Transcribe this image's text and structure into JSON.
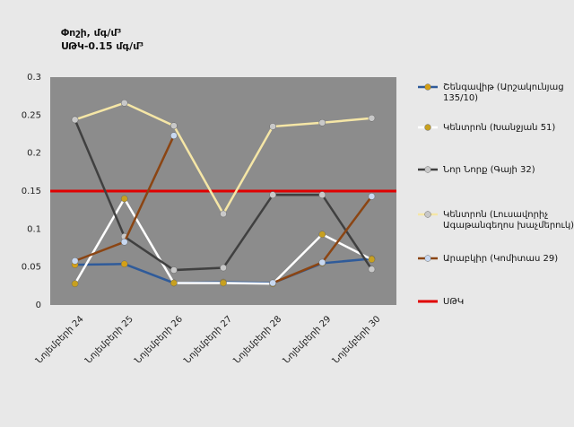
{
  "chart_data": {
    "type": "line",
    "title": "Փոշի, մգ/մ³",
    "subtitle": "ՍԹԿ-0.15 մգ/մ³",
    "categories": [
      "Նոյեմբերի 24",
      "Նոյեմբերի 25",
      "Նոյեմբերի 26",
      "Նոյեմբերի 27",
      "Նոյեմբերի 28",
      "Նոյեմբերի 29",
      "Նոյեմբերի 30"
    ],
    "ylim": [
      0,
      0.3
    ],
    "yticks": [
      "0",
      "0.05",
      "0.1",
      "0.15",
      "0.2",
      "0.25",
      "0.3"
    ],
    "grid": false,
    "legend_position": "right",
    "plot_background": "#8c8c8c",
    "series": [
      {
        "name": "Շենգավիթ (Արշակունյաց 135/10)",
        "color": "#2f5b9a",
        "marker_color": "#d4a017",
        "values": [
          0.053,
          0.054,
          0.029,
          0.03,
          0.029,
          0.055,
          0.061
        ]
      },
      {
        "name": "Կենտրոն (Խանջյան 51)",
        "color": "#ffffff",
        "marker_color": "#c7a020",
        "values": [
          0.028,
          0.14,
          0.029,
          0.029,
          0.028,
          0.093,
          0.06
        ]
      },
      {
        "name": "Նոր Նորք (Գայի 32)",
        "color": "#404040",
        "marker_color": "#c8c8c8",
        "values": [
          0.244,
          0.09,
          0.046,
          0.049,
          0.145,
          0.145,
          0.047
        ]
      },
      {
        "name": "Կենտրոն (Լուսավորիչ Ագաթանգեղոս խաչմերուկ)",
        "color": "#f5e6a6",
        "marker_color": "#c8c8c8",
        "values": [
          0.244,
          0.266,
          0.236,
          0.12,
          0.235,
          0.24,
          0.246
        ]
      },
      {
        "name": "Արաբկիր (Կոմիտաս 29)",
        "color": "#8b4513",
        "marker_color": "#c8d8f0",
        "values": [
          0.058,
          0.083,
          0.223,
          null,
          0.029,
          0.056,
          0.143
        ]
      }
    ],
    "threshold": {
      "name": "ՍԹԿ",
      "value": 0.15,
      "color": "#e00000"
    }
  }
}
